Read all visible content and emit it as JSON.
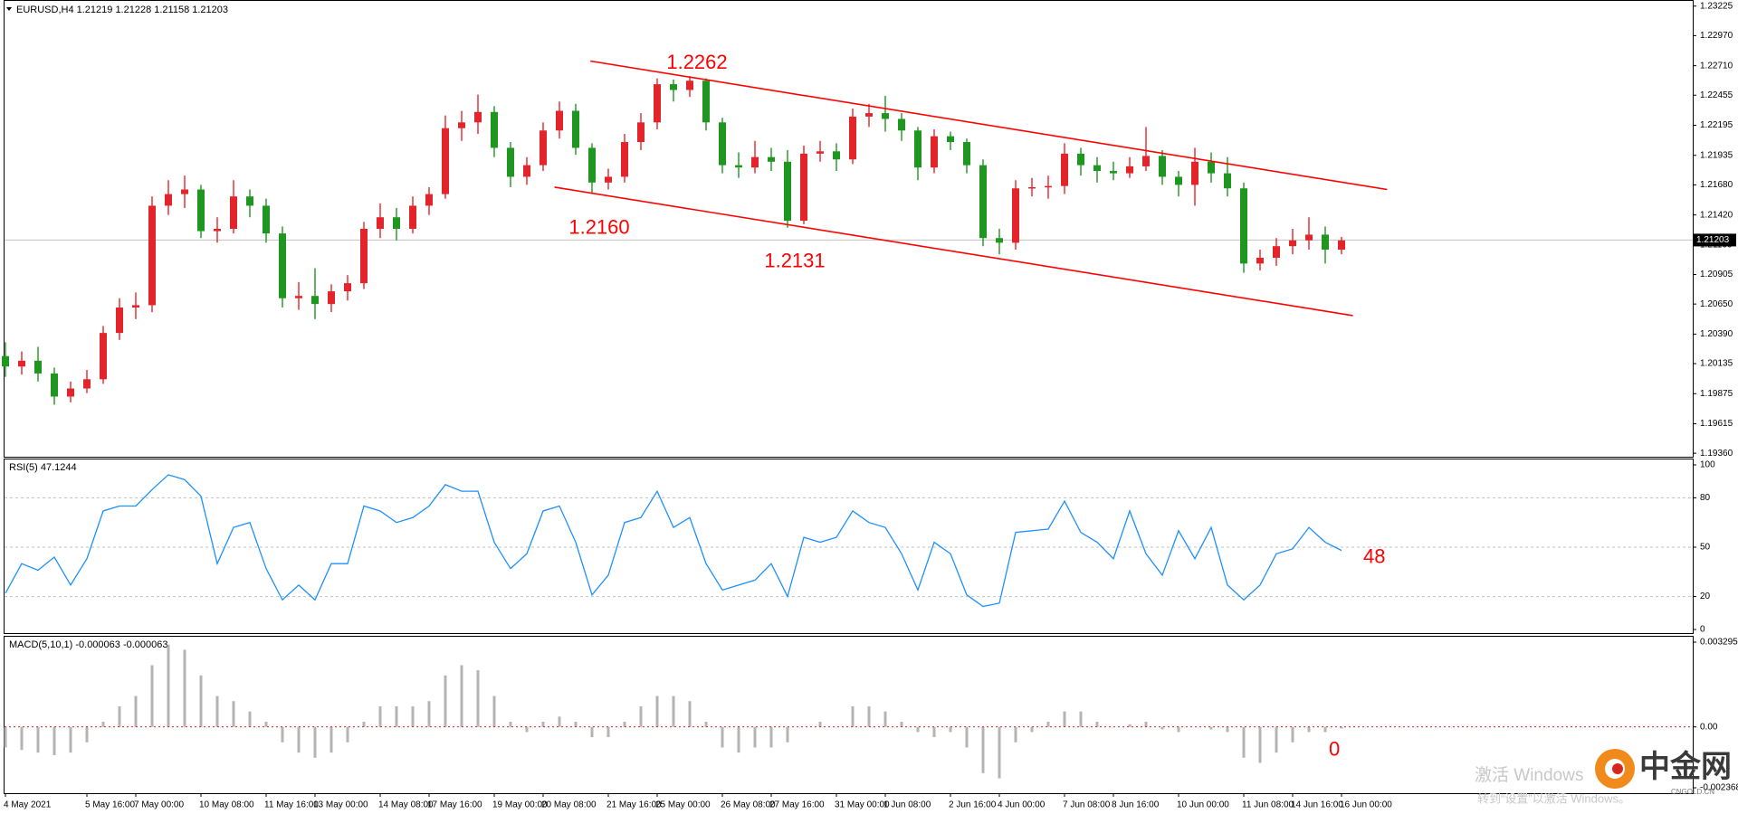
{
  "chart_data": [
    {
      "type": "candlestick",
      "title": "EURUSD,H4  1.21219 1.21228 1.21158 1.21203",
      "categories": [
        "4 May 2021",
        null,
        null,
        null,
        null,
        "5 May 16:00",
        null,
        null,
        "7 May 00:00",
        null,
        null,
        null,
        "10 May 08:00",
        null,
        null,
        null,
        "11 May 16:00",
        null,
        null,
        "13 May 00:00",
        null,
        null,
        null,
        "14 May 08:00",
        null,
        null,
        "17 May 16:00",
        null,
        null,
        null,
        "19 May 00:00",
        null,
        null,
        "20 May 08:00",
        null,
        null,
        null,
        "21 May 16:00",
        null,
        null,
        "25 May 00:00",
        null,
        null,
        null,
        "26 May 08:00",
        null,
        null,
        "27 May 16:00",
        null,
        null,
        null,
        "31 May 00:00",
        null,
        null,
        "1 Jun 08:00",
        null,
        null,
        null,
        "2 Jun 16:00",
        null,
        null,
        "4 Jun 00:00",
        null,
        null,
        null,
        "7 Jun 08:00",
        null,
        null,
        "8 Jun 16:00",
        null,
        null,
        null,
        "10 Jun 00:00",
        null,
        null,
        null,
        "11 Jun 08:00",
        null,
        null,
        "14 Jun 16:00",
        null,
        null,
        "16 Jun 00:00"
      ],
      "open": [
        1.202,
        1.2011,
        1.2016,
        1.2005,
        1.1985,
        1.1992,
        1.2,
        1.204,
        1.2062,
        1.2064,
        1.215,
        1.216,
        1.2164,
        1.2128,
        1.213,
        1.2158,
        1.215,
        1.2126,
        1.207,
        1.2072,
        1.2065,
        1.2076,
        1.2083,
        1.213,
        1.214,
        1.213,
        1.215,
        1.216,
        1.2217,
        1.2222,
        1.2231,
        1.22,
        1.2175,
        1.2185,
        1.2215,
        1.2232,
        1.22,
        1.217,
        1.2175,
        1.2205,
        1.2222,
        1.2255,
        1.225,
        1.2258,
        1.2222,
        1.2185,
        1.2183,
        1.2192,
        1.2188,
        1.2137,
        1.2195,
        1.2197,
        1.219,
        1.2227,
        1.223,
        1.2225,
        1.2215,
        1.2183,
        1.221,
        1.2205,
        1.2185,
        1.2122,
        1.2118,
        1.2165,
        1.2166,
        1.2167,
        1.2195,
        1.2185,
        1.218,
        1.2178,
        1.2184,
        1.2193,
        1.2175,
        1.2168,
        1.2188,
        1.2178,
        1.2165,
        1.21,
        1.2105,
        1.2115,
        1.212,
        1.2125,
        1.2112
      ],
      "high": [
        1.2032,
        1.2024,
        1.2028,
        1.201,
        1.1998,
        1.2008,
        1.2046,
        1.207,
        1.2075,
        1.2158,
        1.2172,
        1.2176,
        1.2168,
        1.214,
        1.2172,
        1.2164,
        1.2156,
        1.2132,
        1.2084,
        1.2096,
        1.2082,
        1.209,
        1.2136,
        1.2152,
        1.2148,
        1.2158,
        1.2166,
        1.2228,
        1.2232,
        1.2246,
        1.2236,
        1.2205,
        1.2192,
        1.2222,
        1.224,
        1.2238,
        1.2204,
        1.2182,
        1.2212,
        1.223,
        1.226,
        1.2259,
        1.2262,
        1.226,
        1.2226,
        1.2196,
        1.2206,
        1.22,
        1.2198,
        1.2202,
        1.2206,
        1.2204,
        1.2234,
        1.2238,
        1.2245,
        1.223,
        1.2218,
        1.2216,
        1.2214,
        1.2208,
        1.219,
        1.213,
        1.2172,
        1.2174,
        1.2176,
        1.2204,
        1.22,
        1.2192,
        1.2188,
        1.2192,
        1.2218,
        1.2198,
        1.218,
        1.22,
        1.2196,
        1.2192,
        1.217,
        1.2112,
        1.2122,
        1.213,
        1.214,
        1.2132,
        1.2123
      ],
      "low": [
        1.2002,
        1.2004,
        1.1998,
        1.1978,
        1.198,
        1.1988,
        1.1996,
        1.2034,
        1.2052,
        1.2058,
        1.2142,
        1.2148,
        1.2122,
        1.2118,
        1.2126,
        1.214,
        1.2118,
        1.2062,
        1.206,
        1.2052,
        1.2058,
        1.2068,
        1.2078,
        1.2122,
        1.212,
        1.2126,
        1.2142,
        1.2156,
        1.2206,
        1.2212,
        1.2192,
        1.2166,
        1.2168,
        1.218,
        1.2208,
        1.2194,
        1.216,
        1.2164,
        1.217,
        1.2198,
        1.2216,
        1.224,
        1.2244,
        1.2215,
        1.2178,
        1.2174,
        1.2178,
        1.218,
        1.2131,
        1.2134,
        1.2188,
        1.218,
        1.2186,
        1.2218,
        1.2214,
        1.2206,
        1.2172,
        1.2178,
        1.2198,
        1.2178,
        1.2115,
        1.2108,
        1.2112,
        1.2158,
        1.2156,
        1.216,
        1.2176,
        1.217,
        1.2172,
        1.2174,
        1.218,
        1.2168,
        1.2158,
        1.215,
        1.217,
        1.2158,
        1.2092,
        1.2094,
        1.2098,
        1.2108,
        1.2112,
        1.21,
        1.2108
      ],
      "close": [
        1.2011,
        1.2016,
        1.2005,
        1.1985,
        1.1992,
        1.2,
        1.204,
        1.2062,
        1.2064,
        1.215,
        1.216,
        1.2164,
        1.2128,
        1.213,
        1.2158,
        1.215,
        1.2126,
        1.207,
        1.2072,
        1.2065,
        1.2076,
        1.2083,
        1.213,
        1.214,
        1.213,
        1.215,
        1.216,
        1.2217,
        1.2222,
        1.2231,
        1.22,
        1.2175,
        1.2185,
        1.2215,
        1.2232,
        1.22,
        1.217,
        1.2175,
        1.2205,
        1.2222,
        1.2255,
        1.225,
        1.2258,
        1.2222,
        1.2185,
        1.2183,
        1.2192,
        1.2188,
        1.2137,
        1.2195,
        1.2197,
        1.219,
        1.2227,
        1.223,
        1.2225,
        1.2215,
        1.2183,
        1.221,
        1.2205,
        1.2185,
        1.2122,
        1.2118,
        1.2165,
        1.2166,
        1.2167,
        1.2195,
        1.2185,
        1.218,
        1.2178,
        1.2184,
        1.2193,
        1.2175,
        1.2168,
        1.2188,
        1.2178,
        1.2165,
        1.21,
        1.2105,
        1.2115,
        1.212,
        1.2125,
        1.2112,
        1.212
      ],
      "up_color": "#e3242b",
      "down_color": "#1e9620",
      "ylim": [
        1.1933,
        1.2327
      ],
      "yticks": [
        1.23225,
        {
          "value": 1.2297,
          "label": "1.22970"
        },
        {
          "value": 1.2271,
          "label": "1.22710"
        },
        1.22455,
        1.22195,
        1.21935,
        {
          "value": 1.2168,
          "label": "1.21680"
        },
        {
          "value": 1.2142,
          "label": "1.21420"
        },
        {
          "value": 1.2116,
          "label": "1.21160"
        },
        1.20905,
        {
          "value": 1.2065,
          "label": "1.20650"
        },
        {
          "value": 1.2039,
          "label": "1.20390"
        },
        1.20135,
        1.19875,
        1.19615,
        {
          "value": 1.1936,
          "label": "1.19360"
        }
      ],
      "last_price": 1.21203,
      "trendlines": [
        {
          "x": [
            35.9,
            84.8
          ],
          "y": [
            1.2275,
            1.2164
          ]
        },
        {
          "x": [
            33.7,
            82.7
          ],
          "y": [
            1.2166,
            1.2055
          ]
        }
      ],
      "trendline_color": "#ff0000",
      "annotations": [
        {
          "label": "1.2262",
          "index": 42,
          "anchor": "above"
        },
        {
          "label": "1.2160",
          "index": 36,
          "anchor": "below"
        },
        {
          "label": "1.2131",
          "index": 48,
          "anchor": "below"
        }
      ],
      "annotation_color": "#ff0000"
    },
    {
      "type": "line",
      "title": "RSI(5) 47.1244",
      "values": [
        22,
        40,
        36,
        44,
        27,
        43,
        72,
        75,
        75,
        85,
        94,
        91,
        81,
        40,
        62,
        65,
        37,
        18,
        27,
        18,
        40,
        40,
        75,
        72,
        65,
        68,
        75,
        88,
        84,
        84,
        53,
        37,
        46,
        72,
        75,
        53,
        21,
        33,
        65,
        68,
        84,
        62,
        68,
        40,
        24,
        27,
        30,
        40,
        20,
        56,
        53,
        56,
        72,
        65,
        62,
        46,
        24,
        53,
        46,
        21,
        14,
        16,
        59,
        60,
        61,
        78,
        59,
        53,
        43,
        72,
        46,
        33,
        60,
        43,
        62,
        27,
        18,
        27,
        46,
        49,
        62,
        53,
        48
      ],
      "color": "#1e90ff",
      "ylim": [
        0,
        100
      ],
      "yticks": [
        100,
        80,
        50,
        20,
        0
      ],
      "annotations": [
        {
          "label": "48"
        }
      ],
      "annotation_color": "#ff0000"
    },
    {
      "type": "bar",
      "title": "MACD(5,10,1) -0.000063 -0.000063",
      "values": [
        -0.0008,
        -0.0009,
        -0.001,
        -0.0011,
        -0.001,
        -0.0006,
        0.0002,
        0.0008,
        0.0012,
        0.0024,
        0.0032,
        0.003,
        0.002,
        0.0012,
        0.001,
        0.0006,
        0.0002,
        -0.0006,
        -0.001,
        -0.0012,
        -0.001,
        -0.0006,
        0.0002,
        0.0008,
        0.0008,
        0.0008,
        0.001,
        0.002,
        0.0024,
        0.0022,
        0.0012,
        0.0002,
        -0.0002,
        0.0002,
        0.0004,
        0.0002,
        -0.0004,
        -0.0004,
        0.0002,
        0.0008,
        0.0012,
        0.0012,
        0.001,
        0.0002,
        -0.0008,
        -0.001,
        -0.0008,
        -0.0008,
        -0.0006,
        0.0,
        0.0002,
        0.0,
        0.0008,
        0.0008,
        0.0006,
        0.0002,
        -0.0002,
        -0.0004,
        -0.0002,
        -0.0008,
        -0.0018,
        -0.002,
        -0.0006,
        -0.0002,
        0.0002,
        0.0006,
        0.0006,
        0.0002,
        0.0,
        0.0001,
        0.0002,
        -0.0001,
        -0.0002,
        0.0,
        -0.0001,
        -0.0002,
        -0.0012,
        -0.0014,
        -0.001,
        -0.0006,
        -0.0002,
        -0.0002,
        -6.3e-05
      ],
      "color": "#b4b4b4",
      "zero_line_color": "#e02020",
      "ylim": [
        -0.002368,
        0.003295
      ],
      "yticks": [
        0.003295,
        {
          "value": 0,
          "label": "0.00"
        },
        -0.002368
      ],
      "annotations": [
        {
          "label": "0"
        }
      ],
      "annotation_color": "#ff0000"
    }
  ],
  "watermark": {
    "activate": "激活 Windows",
    "activate_hint": "转到“设置”以激活 Windows。",
    "logo": "中金网",
    "logo_sub": "CNGOLD.CN"
  }
}
